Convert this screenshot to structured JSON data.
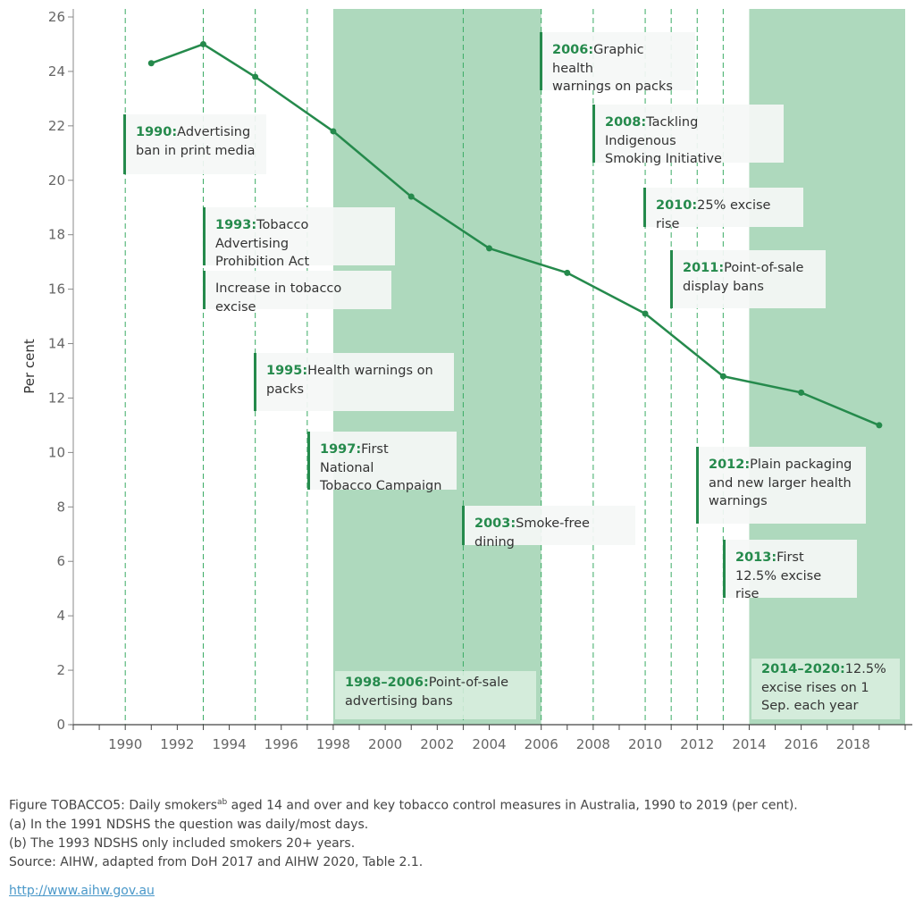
{
  "chart_data": {
    "type": "line",
    "title": "Figure TOBACCO5: Daily smokers aged 14 and over and key tobacco control measures in Australia, 1990 to 2019 (per cent).",
    "xlabel": "",
    "ylabel": "Per cent",
    "xlim": [
      1988,
      2020
    ],
    "ylim": [
      0,
      26
    ],
    "x_ticks": [
      1990,
      1992,
      1994,
      1996,
      1998,
      2000,
      2002,
      2004,
      2006,
      2008,
      2010,
      2012,
      2014,
      2016,
      2018
    ],
    "y_ticks": [
      0,
      2,
      4,
      6,
      8,
      10,
      12,
      14,
      16,
      18,
      20,
      22,
      24,
      26
    ],
    "grid": false,
    "series": [
      {
        "name": "Daily smokers",
        "color": "#258a4c",
        "x": [
          1991,
          1993,
          1995,
          1998,
          2001,
          2004,
          2007,
          2010,
          2013,
          2016,
          2019
        ],
        "values": [
          24.3,
          25.0,
          23.8,
          21.8,
          19.4,
          17.5,
          16.6,
          15.1,
          12.8,
          12.2,
          11.0
        ]
      }
    ],
    "shaded_periods": [
      {
        "start": 1998,
        "end": 2006,
        "color": "#aed9bd"
      },
      {
        "start": 2014,
        "end": 2020,
        "color": "#aed9bd"
      }
    ],
    "event_lines": [
      1990,
      1993,
      1995,
      1997,
      2003,
      2006,
      2008,
      2010,
      2011,
      2012,
      2013
    ],
    "annotations": [
      {
        "year_label": "1990:",
        "text": "Advertising ban in print media",
        "lines": [
          "Advertising",
          "ban in print media"
        ]
      },
      {
        "year_label": "1993:",
        "text": "Tobacco Advertising Prohibition Act",
        "lines": [
          "Tobacco Advertising",
          "Prohibition Act"
        ]
      },
      {
        "year_label": "",
        "text": "Increase in tobacco excise",
        "lines": [
          "Increase in tobacco excise"
        ]
      },
      {
        "year_label": "1995:",
        "text": "Health warnings on packs",
        "lines": [
          "Health warnings on",
          "packs"
        ]
      },
      {
        "year_label": "1997:",
        "text": "First National Tobacco Campaign",
        "lines": [
          "First National",
          "Tobacco Campaign"
        ]
      },
      {
        "year_label": "1998–2006:",
        "text": "Point-of-sale advertising bans",
        "lines": [
          "Point-of-sale",
          "advertising bans"
        ]
      },
      {
        "year_label": "2003:",
        "text": "Smoke-free dining",
        "lines": [
          "Smoke-free dining"
        ]
      },
      {
        "year_label": "2006:",
        "text": "Graphic health warnings on packs",
        "lines": [
          "Graphic health",
          "warnings on packs"
        ]
      },
      {
        "year_label": "2008:",
        "text": "Tackling Indigenous Smoking Initiative",
        "lines": [
          "Tackling Indigenous",
          "Smoking Initiative"
        ]
      },
      {
        "year_label": "2010:",
        "text": "25% excise rise",
        "lines": [
          "25% excise rise"
        ]
      },
      {
        "year_label": "2011:",
        "text": "Point-of-sale display bans",
        "lines": [
          "Point-of-sale",
          "display bans"
        ]
      },
      {
        "year_label": "2012:",
        "text": "Plain packaging and new larger health warnings",
        "lines": [
          "Plain packaging",
          "and new larger health",
          "warnings"
        ]
      },
      {
        "year_label": "2013:",
        "text": "First 12.5% excise rise",
        "lines": [
          "First",
          "12.5% excise rise"
        ]
      },
      {
        "year_label": "2014–2020:",
        "text": "12.5% excise rises on 1 Sep. each year",
        "lines": [
          "12.5%",
          "excise rises on 1",
          "Sep. each year"
        ]
      }
    ]
  },
  "caption": {
    "line1_pre": "Figure TOBACCO5: Daily smokers",
    "line1_sup": "ab",
    "line1_post": " aged 14 and over and key tobacco control measures in Australia, 1990 to 2019 (per cent).",
    "note_a": "(a) In the 1991 NDSHS the question was daily/most days.",
    "note_b": "(b) The 1993 NDSHS only included smokers 20+ years.",
    "source": "Source: AIHW, adapted from DoH 2017 and AIHW 2020, Table 2.1."
  },
  "link": {
    "text": "http://www.aihw.gov.au"
  }
}
